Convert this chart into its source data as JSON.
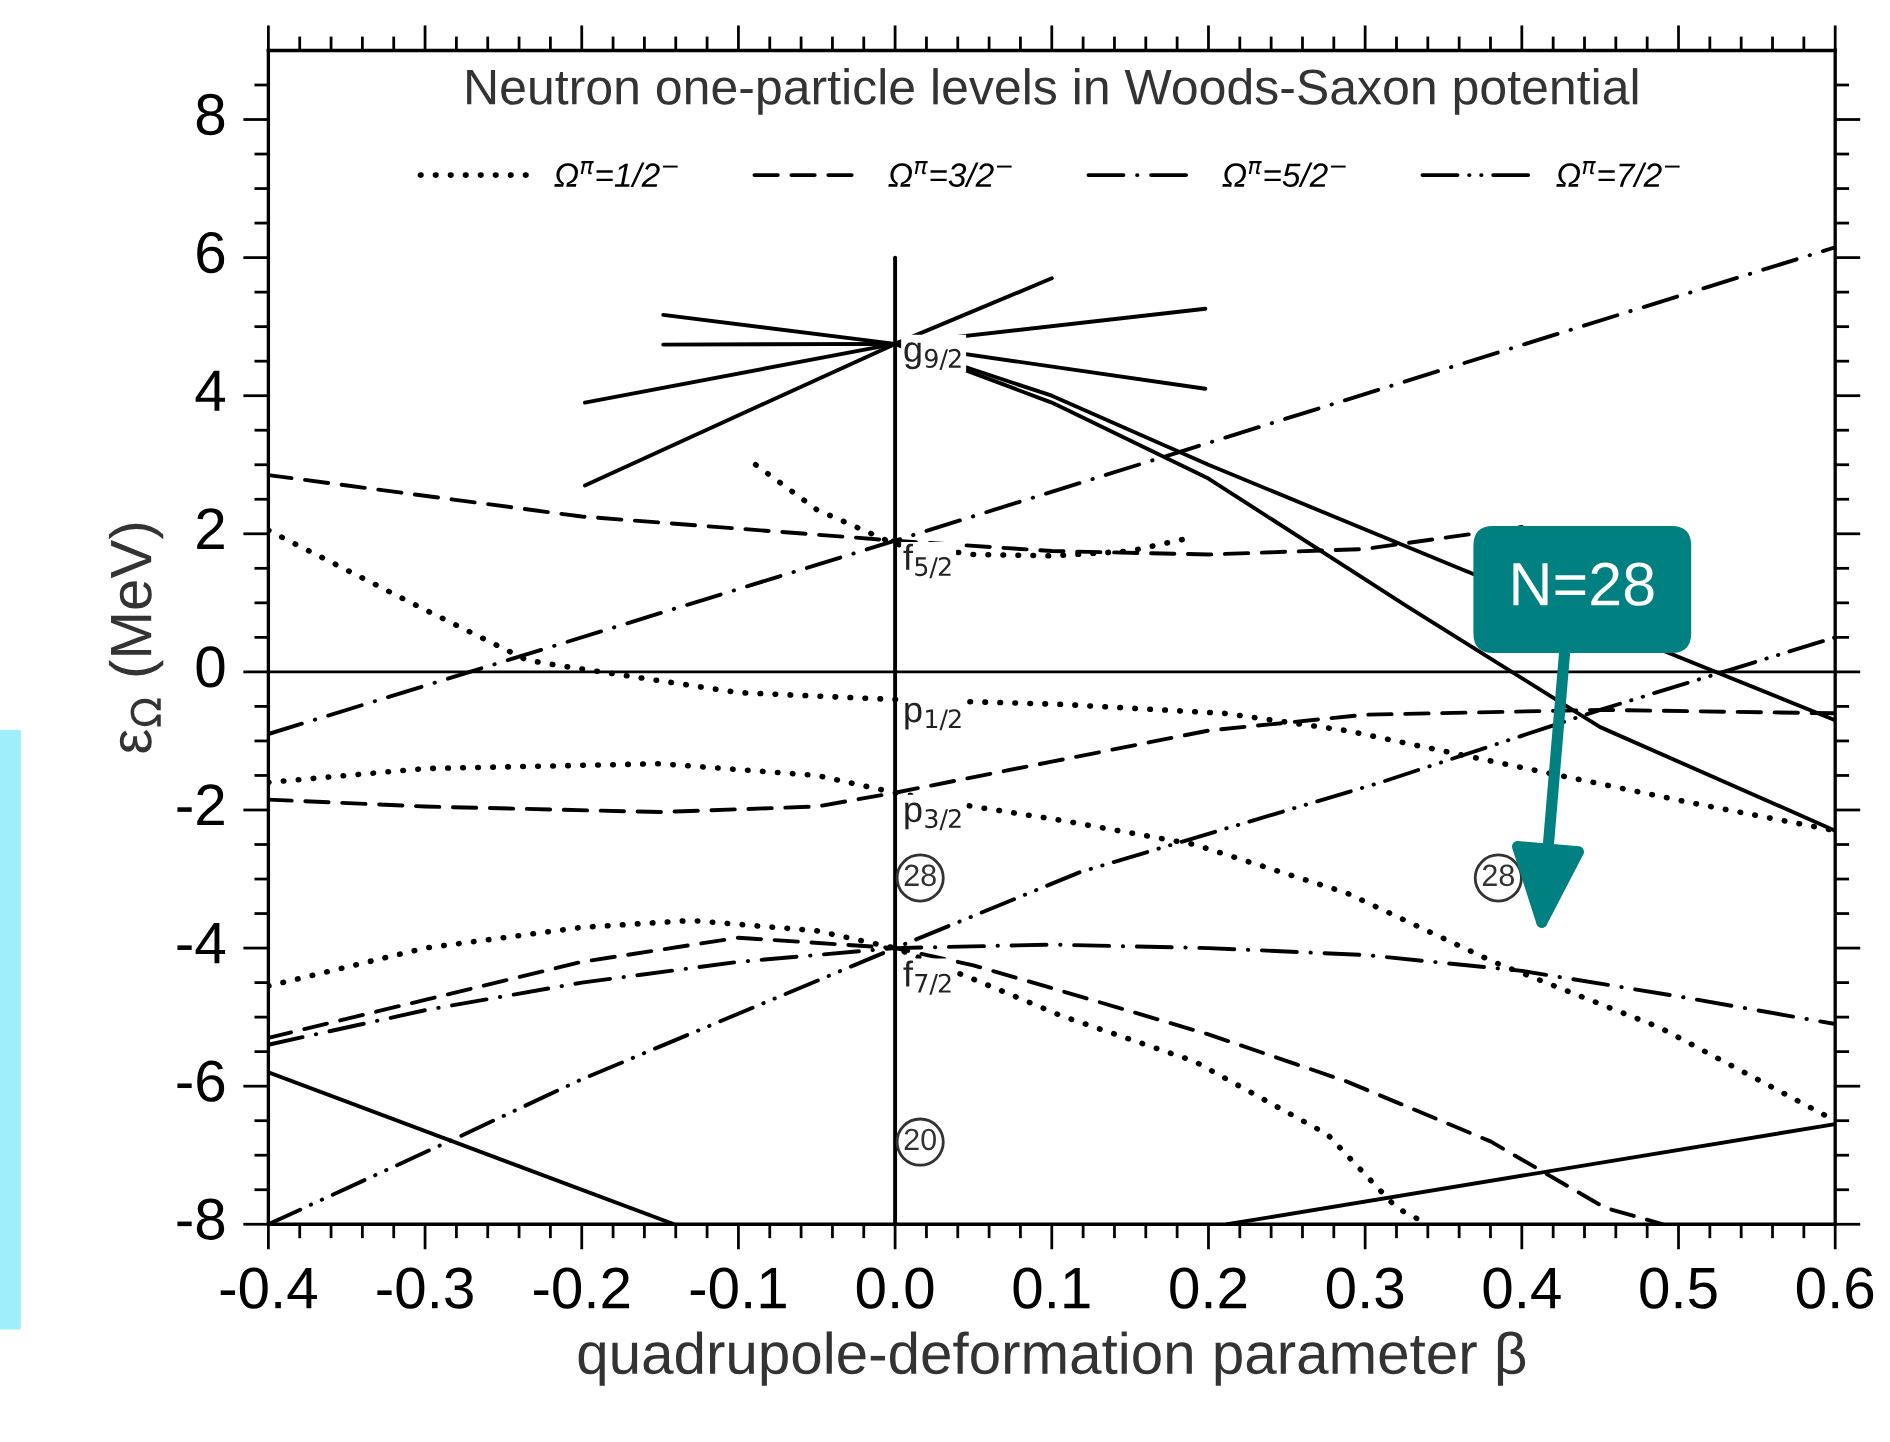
{
  "chart_data": {
    "type": "line",
    "title": "Neutron one-particle levels in Woods-Saxon potential",
    "xlabel": "quadrupole-deformation parameter β",
    "ylabel": "ε$_{Ω}$ (MeV)",
    "xlim": [
      -0.4,
      0.6
    ],
    "ylim": [
      -8,
      9
    ],
    "xticks": [
      -0.4,
      {
        "value": -0.38,
        "label": null
      },
      {
        "value": -0.36,
        "label": null
      },
      {
        "value": -0.34,
        "label": null
      },
      {
        "value": -0.32,
        "label": null
      },
      -0.3,
      {
        "value": -0.28,
        "label": null
      },
      {
        "value": -0.26,
        "label": null
      },
      {
        "value": -0.24,
        "label": null
      },
      {
        "value": -0.22,
        "label": null
      },
      -0.2,
      {
        "value": -0.18,
        "label": null
      },
      {
        "value": -0.16,
        "label": null
      },
      {
        "value": -0.14,
        "label": null
      },
      {
        "value": -0.12,
        "label": null
      },
      -0.1,
      {
        "value": -0.08,
        "label": null
      },
      {
        "value": -0.06,
        "label": null
      },
      {
        "value": -0.04,
        "label": null
      },
      {
        "value": -0.02,
        "label": null
      },
      {
        "value": 0,
        "label": "0.0"
      },
      {
        "value": 0.02,
        "label": null
      },
      {
        "value": 0.04,
        "label": null
      },
      {
        "value": 0.06,
        "label": null
      },
      {
        "value": 0.08,
        "label": null
      },
      0.1,
      {
        "value": 0.12,
        "label": null
      },
      {
        "value": 0.14,
        "label": null
      },
      {
        "value": 0.16,
        "label": null
      },
      {
        "value": 0.18,
        "label": null
      },
      0.2,
      {
        "value": 0.22,
        "label": null
      },
      {
        "value": 0.24,
        "label": null
      },
      {
        "value": 0.26,
        "label": null
      },
      {
        "value": 0.28,
        "label": null
      },
      0.3,
      {
        "value": 0.32,
        "label": null
      },
      {
        "value": 0.34,
        "label": null
      },
      {
        "value": 0.36,
        "label": null
      },
      {
        "value": 0.38,
        "label": null
      },
      0.4,
      {
        "value": 0.42,
        "label": null
      },
      {
        "value": 0.44,
        "label": null
      },
      {
        "value": 0.46,
        "label": null
      },
      {
        "value": 0.48,
        "label": null
      },
      0.5,
      {
        "value": 0.52,
        "label": null
      },
      {
        "value": 0.54,
        "label": null
      },
      {
        "value": 0.56,
        "label": null
      },
      {
        "value": 0.58,
        "label": null
      },
      0.6
    ],
    "yticks": [
      -8,
      {
        "value": -7.5,
        "label": null
      },
      {
        "value": -7,
        "label": null
      },
      {
        "value": -6.5,
        "label": null
      },
      -6,
      {
        "value": -5.5,
        "label": null
      },
      {
        "value": -5,
        "label": null
      },
      {
        "value": -4.5,
        "label": null
      },
      -4,
      {
        "value": -3.5,
        "label": null
      },
      {
        "value": -3,
        "label": null
      },
      {
        "value": -2.5,
        "label": null
      },
      -2,
      {
        "value": -1.5,
        "label": null
      },
      {
        "value": -1,
        "label": null
      },
      {
        "value": -0.5,
        "label": null
      },
      0,
      {
        "value": 0.5,
        "label": null
      },
      {
        "value": 1,
        "label": null
      },
      {
        "value": 1.5,
        "label": null
      },
      2,
      {
        "value": 2.5,
        "label": null
      },
      {
        "value": 3,
        "label": null
      },
      {
        "value": 3.5,
        "label": null
      },
      4,
      {
        "value": 4.5,
        "label": null
      },
      {
        "value": 5,
        "label": null
      },
      {
        "value": 5.5,
        "label": null
      },
      6,
      {
        "value": 6.5,
        "label": null
      },
      {
        "value": 7,
        "label": null
      },
      {
        "value": 7.5,
        "label": null
      },
      8,
      {
        "value": 8.5,
        "label": null
      }
    ],
    "grid": false,
    "legend": "top",
    "ref_lines": [
      {
        "axis": "y",
        "value": 0,
        "color": "#000000"
      }
    ],
    "series": [
      {
        "name": "Ω$^{π}$=1/2$^{−}$",
        "color": "#000000",
        "line_style": "dotted",
        "x": [
          -0.4,
          -0.3,
          -0.235,
          -0.214,
          -0.1,
          0,
          0.106,
          0.21,
          0.288,
          0.403,
          0.509,
          0.6
        ],
        "values": [
          2.05,
          0.9,
          0.17,
          0.09,
          -0.3,
          -0.4,
          -0.47,
          -0.6,
          -0.85,
          -1.4,
          -1.9,
          -2.3
        ]
      },
      {
        "color": "#000000",
        "line_style": "dotted",
        "x": [
          -0.4,
          -0.3,
          -0.15,
          -0.05,
          0,
          0.05,
          0.106,
          0.191,
          0.288,
          0.382,
          0.488,
          0.6
        ],
        "values": [
          -1.6,
          -1.4,
          -1.33,
          -1.5,
          -1.75,
          -1.95,
          -2.15,
          -2.5,
          -3.2,
          -4.2,
          -5.15,
          -6.5
        ]
      },
      {
        "color": "#000000",
        "line_style": "dotted",
        "x": [
          -0.4,
          -0.3,
          -0.2,
          -0.13,
          -0.05,
          0,
          0.05,
          0.106,
          0.191,
          0.276,
          0.32,
          0.34
        ],
        "values": [
          -4.55,
          -4.0,
          -3.7,
          -3.6,
          -3.75,
          -4.0,
          -4.45,
          -4.98,
          -5.64,
          -6.7,
          -7.76,
          -8.0
        ]
      },
      {
        "color": "#000000",
        "line_style": "dotted",
        "x": [
          -0.089,
          -0.05,
          0,
          0.05,
          0.1,
          0.15,
          0.19
        ],
        "values": [
          3.0,
          2.35,
          1.85,
          1.7,
          1.68,
          1.75,
          1.95
        ]
      },
      {
        "name": "Ω$^{π}$=3/2$^{−}$",
        "color": "#000000",
        "line_style": "dashed",
        "x": [
          -0.4,
          -0.2,
          0,
          0.1,
          0.2,
          0.3,
          0.4
        ],
        "values": [
          2.85,
          2.25,
          1.9,
          1.75,
          1.7,
          1.78,
          2.1
        ]
      },
      {
        "color": "#000000",
        "line_style": "dashed",
        "x": [
          -0.4,
          -0.3,
          -0.15,
          -0.05,
          0,
          0.1,
          0.2,
          0.3,
          0.45,
          0.6
        ],
        "values": [
          -1.85,
          -1.95,
          -2.03,
          -1.95,
          -1.75,
          -1.3,
          -0.85,
          -0.62,
          -0.55,
          -0.6
        ]
      },
      {
        "color": "#000000",
        "line_style": "dashed",
        "x": [
          -0.4,
          -0.3,
          -0.2,
          -0.1,
          0,
          0.05,
          0.106,
          0.2,
          0.288,
          0.38,
          0.453,
          0.49
        ],
        "values": [
          -5.3,
          -4.75,
          -4.2,
          -3.85,
          -4.0,
          -4.25,
          -4.62,
          -5.25,
          -5.93,
          -6.8,
          -7.76,
          -8.0
        ]
      },
      {
        "name": "Ω$^{π}$=5/2$^{−}$",
        "color": "#000000",
        "line_style": "dashdot",
        "x": [
          -0.4,
          0,
          0.6
        ],
        "values": [
          -0.9,
          1.9,
          6.15
        ]
      },
      {
        "color": "#000000",
        "line_style": "dashdot",
        "x": [
          -0.4,
          -0.3,
          -0.2,
          -0.1,
          0,
          0.1,
          0.2,
          0.3,
          0.4,
          0.5,
          0.6
        ],
        "values": [
          -5.4,
          -4.9,
          -4.5,
          -4.2,
          -4.0,
          -3.95,
          -4.0,
          -4.1,
          -4.33,
          -4.7,
          -5.1
        ]
      },
      {
        "name": "Ω$^{π}$=7/2$^{−}$",
        "color": "#000000",
        "line_style": "dashdotdot",
        "x": [
          -0.4,
          -0.28,
          -0.2,
          0,
          0.118,
          0.31,
          0.45,
          0.6
        ],
        "values": [
          -8.0,
          -6.75,
          -5.9,
          -4.0,
          -2.9,
          -1.6,
          -0.55,
          0.5
        ]
      },
      {
        "color": "#000000",
        "line_style": "solid",
        "x": [
          -0.148,
          0,
          0.198
        ],
        "values": [
          5.17,
          4.75,
          4.1
        ]
      },
      {
        "color": "#000000",
        "line_style": "solid",
        "x": [
          -0.198,
          0,
          0.198
        ],
        "values": [
          3.9,
          4.75,
          5.26
        ]
      },
      {
        "color": "#000000",
        "line_style": "solid",
        "x": [
          -0.198,
          0,
          0.1
        ],
        "values": [
          2.7,
          4.75,
          5.7
        ]
      },
      {
        "color": "#000000",
        "line_style": "solid",
        "x": [
          -0.148,
          0,
          0.1,
          0.2,
          0.326,
          0.45,
          0.6
        ],
        "values": [
          4.74,
          4.75,
          3.9,
          2.8,
          0.96,
          -0.8,
          -2.3
        ]
      },
      {
        "color": "#000000",
        "line_style": "solid",
        "x": [
          0,
          0.1,
          0.2,
          0.36,
          0.6
        ],
        "values": [
          4.75,
          4.0,
          3.0,
          1.5,
          -0.7
        ]
      },
      {
        "color": "#000000",
        "line_style": "solid",
        "x": [
          -0.4,
          -0.141
        ],
        "values": [
          -5.8,
          -8.0
        ]
      },
      {
        "color": "#000000",
        "line_style": "solid",
        "x": [
          0.212,
          0.6
        ],
        "values": [
          -8.0,
          -6.55
        ]
      },
      {
        "color": "#000000",
        "line_style": "solid",
        "x": [
          0,
          0
        ],
        "values": [
          -8.0,
          6.0
        ]
      }
    ],
    "annotations": [
      "g$_{9/2}$",
      "f$_{5/2}$",
      "p$_{1/2}$",
      "p$_{3/2}$",
      "f$_{7/2}$",
      "28",
      "20",
      "28",
      "N=28"
    ]
  }
}
